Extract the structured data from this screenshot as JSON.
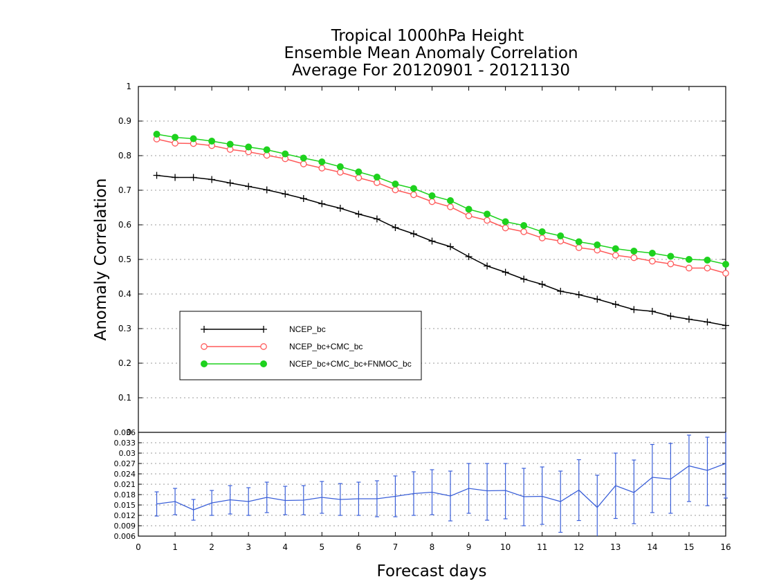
{
  "chart_data": [
    {
      "type": "line",
      "title": [
        "Tropical 1000hPa Height",
        "Ensemble Mean Anomaly Correlation",
        "Average For 20120901 - 20121130"
      ],
      "xlabel": "Forecast days",
      "ylabel": "Anomaly Correlation",
      "xlim": [
        0,
        16
      ],
      "ylim": [
        0,
        1
      ],
      "x_ticks": [
        "0",
        "1",
        "2",
        "3",
        "4",
        "5",
        "6",
        "7",
        "8",
        "9",
        "10",
        "11",
        "12",
        "13",
        "14",
        "15",
        "16"
      ],
      "y_ticks": [
        "0",
        "0.1",
        "0.2",
        "0.3",
        "0.4",
        "0.5",
        "0.6",
        "0.7",
        "0.8",
        "0.9",
        "1"
      ],
      "grid": true,
      "legend_position": "lower-left",
      "x": [
        0.5,
        1,
        1.5,
        2,
        2.5,
        3,
        3.5,
        4,
        4.5,
        5,
        5.5,
        6,
        6.5,
        7,
        7.5,
        8,
        8.5,
        9,
        9.5,
        10,
        10.5,
        11,
        11.5,
        12,
        12.5,
        13,
        13.5,
        14,
        14.5,
        15,
        15.5,
        16
      ],
      "series": [
        {
          "name": "NCEP_bc",
          "color": "#000000",
          "marker": "plus",
          "values": [
            0.743,
            0.737,
            0.737,
            0.731,
            0.721,
            0.711,
            0.701,
            0.689,
            0.676,
            0.661,
            0.648,
            0.631,
            0.617,
            0.592,
            0.574,
            0.553,
            0.537,
            0.508,
            0.481,
            0.463,
            0.443,
            0.428,
            0.408,
            0.398,
            0.385,
            0.37,
            0.355,
            0.35,
            0.336,
            0.327,
            0.319,
            0.309
          ]
        },
        {
          "name": "NCEP_bc+CMC_bc",
          "color": "#ff5a5a",
          "marker": "open-circle",
          "values": [
            0.848,
            0.836,
            0.835,
            0.829,
            0.818,
            0.811,
            0.801,
            0.791,
            0.776,
            0.764,
            0.752,
            0.736,
            0.722,
            0.701,
            0.687,
            0.667,
            0.652,
            0.626,
            0.613,
            0.591,
            0.58,
            0.562,
            0.553,
            0.534,
            0.527,
            0.512,
            0.505,
            0.495,
            0.487,
            0.475,
            0.475,
            0.46
          ]
        },
        {
          "name": "NCEP_bc+CMC_bc+FNMOC_bc",
          "color": "#1ed21e",
          "marker": "filled-circle",
          "values": [
            0.862,
            0.853,
            0.849,
            0.842,
            0.833,
            0.825,
            0.817,
            0.805,
            0.793,
            0.782,
            0.768,
            0.753,
            0.738,
            0.718,
            0.705,
            0.684,
            0.67,
            0.645,
            0.631,
            0.609,
            0.598,
            0.58,
            0.568,
            0.551,
            0.542,
            0.531,
            0.524,
            0.518,
            0.509,
            0.5,
            0.498,
            0.486
          ]
        }
      ]
    },
    {
      "type": "line",
      "xlim": [
        0,
        16
      ],
      "ylim": [
        0.006,
        0.036
      ],
      "y_ticks": [
        "0.006",
        "0.009",
        "0.012",
        "0.015",
        "0.018",
        "0.021",
        "0.024",
        "0.027",
        "0.03",
        "0.033",
        "0.036"
      ],
      "grid": true,
      "x": [
        0.5,
        1,
        1.5,
        2,
        2.5,
        3,
        3.5,
        4,
        4.5,
        5,
        5.5,
        6,
        6.5,
        7,
        7.5,
        8,
        8.5,
        9,
        9.5,
        10,
        10.5,
        11,
        11.5,
        12,
        12.5,
        13,
        13.5,
        14,
        14.5,
        15,
        15.5,
        16
      ],
      "series": [
        {
          "color": "#3a5fd9",
          "values": [
            0.0153,
            0.016,
            0.0136,
            0.0156,
            0.0165,
            0.016,
            0.0172,
            0.0163,
            0.0164,
            0.0172,
            0.0166,
            0.0168,
            0.0168,
            0.0175,
            0.0183,
            0.0187,
            0.0176,
            0.0198,
            0.0191,
            0.0192,
            0.0174,
            0.0175,
            0.016,
            0.0193,
            0.0143,
            0.0206,
            0.0186,
            0.023,
            0.0225,
            0.0263,
            0.025,
            0.027
          ],
          "error_low": [
            0.0118,
            0.0122,
            0.0106,
            0.012,
            0.0124,
            0.012,
            0.0128,
            0.0122,
            0.0122,
            0.0126,
            0.012,
            0.012,
            0.0116,
            0.0116,
            0.012,
            0.0122,
            0.0104,
            0.0126,
            0.0106,
            0.011,
            0.009,
            0.0094,
            0.0071,
            0.0105,
            0.0052,
            0.0111,
            0.0096,
            0.0128,
            0.0126,
            0.016,
            0.0148,
            0.017
          ],
          "error_high": [
            0.0188,
            0.0198,
            0.0166,
            0.0192,
            0.0206,
            0.02,
            0.0216,
            0.0204,
            0.0206,
            0.0218,
            0.0212,
            0.0216,
            0.022,
            0.0234,
            0.0246,
            0.0252,
            0.0248,
            0.027,
            0.027,
            0.027,
            0.0256,
            0.026,
            0.0248,
            0.0281,
            0.0236,
            0.03,
            0.028,
            0.0325,
            0.0328,
            0.0352,
            0.0346,
            0.037
          ]
        }
      ]
    }
  ]
}
